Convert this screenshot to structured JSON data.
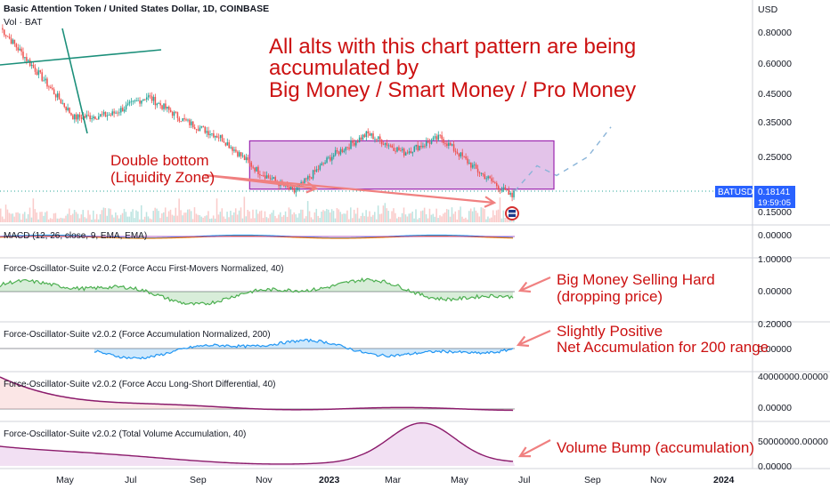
{
  "header": {
    "title": "Basic Attention Token / United States Dollar, 1D, COINBASE",
    "volume_label": "Vol · BAT"
  },
  "price_axis": {
    "unit": "USD",
    "ticks": [
      "0.80000",
      "0.60000",
      "0.45000",
      "0.35000",
      "0.25000",
      "0.15000"
    ],
    "scale": "log"
  },
  "last_price": {
    "symbol": "BATUSD",
    "value": "0.18141",
    "countdown": "19:59:05"
  },
  "x_axis": {
    "labels": [
      "May",
      "Jul",
      "Sep",
      "Nov",
      "2023",
      "Mar",
      "May",
      "Jul",
      "Sep",
      "Nov",
      "2024"
    ]
  },
  "annotations": {
    "headline": [
      "All alts with this chart pattern are being",
      "accumulated by",
      "Big Money / Smart Money / Pro Money"
    ],
    "double_bottom": [
      "Double bottom",
      "(Liquidity Zone)"
    ],
    "selling": [
      "Big Money Selling Hard",
      "(dropping price)"
    ],
    "net_accum": [
      "Slightly Positive",
      "Net Accumulation for 200 range"
    ],
    "volume_bump": [
      "Volume Bump (accumulation)"
    ]
  },
  "panels": [
    {
      "id": "macd",
      "title": "MACD (12, 26, close, 9, EMA, EMA)",
      "ticks": [
        "0.00000"
      ]
    },
    {
      "id": "first_movers",
      "title": "Force-Oscillator-Suite v2.0.2 (Force Accu First-Movers Normalized, 40)",
      "ticks": [
        "1.00000",
        "0.00000"
      ]
    },
    {
      "id": "accum200",
      "title": "Force-Oscillator-Suite v2.0.2 (Force Accumulation Normalized, 200)",
      "ticks": [
        "0.20000",
        "0.00000"
      ]
    },
    {
      "id": "long_short",
      "title": "Force-Oscillator-Suite v2.0.2 (Force Accu Long-Short Differential, 40)",
      "ticks": [
        "40000000.00000",
        "0.00000"
      ]
    },
    {
      "id": "total_vol",
      "title": "Force-Oscillator-Suite v2.0.2 (Total Volume Accumulation, 40)",
      "ticks": [
        "50000000.00000",
        "0.00000"
      ]
    }
  ],
  "colors": {
    "up": "#26a69a",
    "down": "#ef5350",
    "accent_red": "#cc1111",
    "zone": "#9c27b0",
    "line_blue": "#2196f3",
    "purple_line": "#8b1a6b",
    "tag_blue": "#2962ff"
  },
  "chart_data": {
    "type": "line",
    "title": "Basic Attention Token / United States Dollar, 1D, COINBASE",
    "x": [
      "2022-04",
      "2022-05",
      "2022-06",
      "2022-07",
      "2022-08",
      "2022-09",
      "2022-10",
      "2022-11",
      "2022-12",
      "2023-01",
      "2023-02",
      "2023-03",
      "2023-04",
      "2023-05",
      "2023-06"
    ],
    "series": [
      {
        "name": "BATUSD",
        "values": [
          0.83,
          0.55,
          0.36,
          0.37,
          0.44,
          0.35,
          0.3,
          0.22,
          0.18,
          0.25,
          0.31,
          0.26,
          0.3,
          0.22,
          0.17
        ]
      }
    ],
    "last": 0.18141,
    "ylim": [
      0.14,
      0.95
    ],
    "yscale": "log",
    "zone": {
      "from": "2022-11",
      "to": "2023-07",
      "low": 0.185,
      "high": 0.29
    },
    "projection": [
      0.18141,
      0.23,
      0.21,
      0.25,
      0.33
    ]
  }
}
